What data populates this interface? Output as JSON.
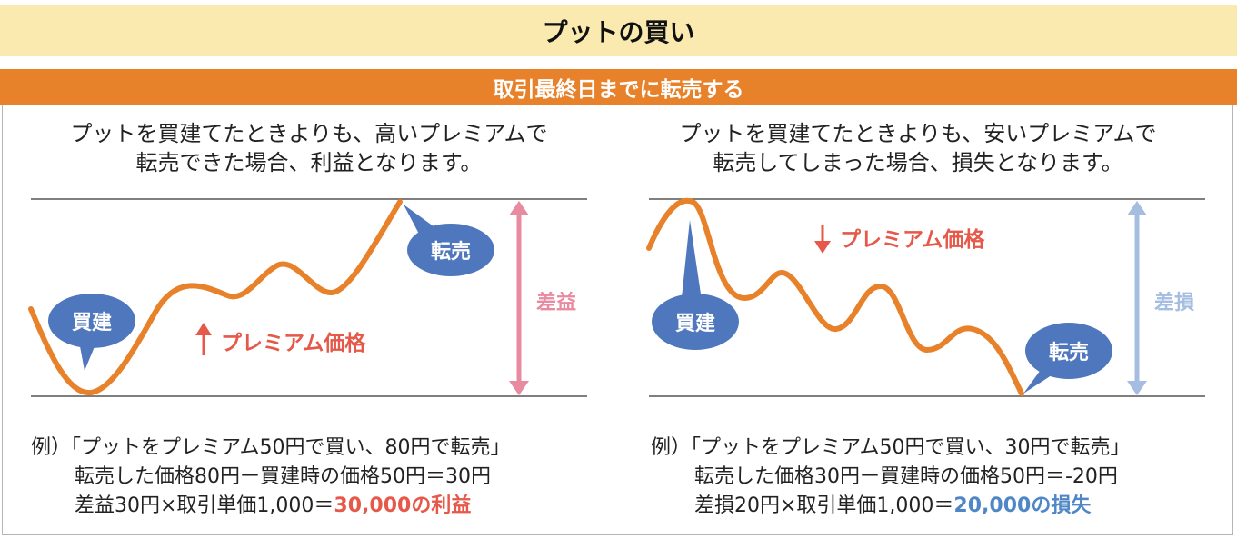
{
  "title": "プットの買い",
  "subtitle": "取引最終日までに転売する",
  "colors": {
    "title_bg": "#fbeab0",
    "subtitle_bg": "#e8822a",
    "curve": "#e8822a",
    "callout": "#4f77bd",
    "profit": "#e6594a",
    "profit_arrow": "#e88aa0",
    "loss": "#4f86c6",
    "loss_arrow": "#a4bde0"
  },
  "left": {
    "description_line1": "プットを買建てたときよりも、高いプレミアムで",
    "description_line2": "転売できた場合、利益となります。",
    "buy_label": "買建",
    "sell_label": "転売",
    "direction_label": "プレミアム価格",
    "direction_arrow_icon": "up-arrow-icon",
    "diff_label": "差益",
    "example_line1": "例）「プットをプレミアム50円で買い、80円で転売」",
    "example_line2": "転売した価格80円ー買建時の価格50円＝30円",
    "example_line3_prefix": "差益30円×取引単価1,000＝",
    "example_line3_result": "30,000の利益"
  },
  "right": {
    "description_line1": "プットを買建てたときよりも、安いプレミアムで",
    "description_line2": "転売してしまった場合、損失となります。",
    "buy_label": "買建",
    "sell_label": "転売",
    "direction_label": "プレミアム価格",
    "direction_arrow_icon": "down-arrow-icon",
    "diff_label": "差損",
    "example_line1": "例）「プットをプレミアム50円で買い、30円で転売」",
    "example_line2": "転売した価格30円ー買建時の価格50円＝-20円",
    "example_line3_prefix": "差損20円×取引単価1,000＝",
    "example_line3_result": "20,000の損失"
  }
}
